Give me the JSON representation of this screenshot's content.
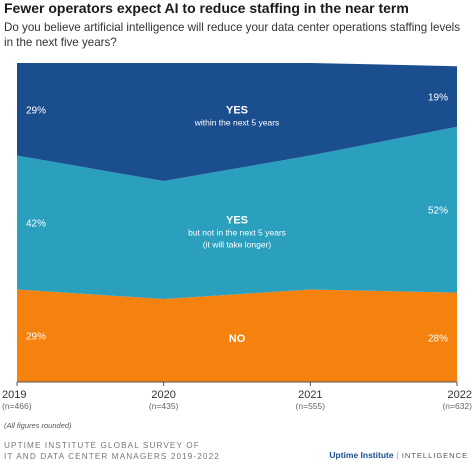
{
  "title": "Fewer operators expect AI to reduce staffing in the near term",
  "subtitle": "Do you believe artificial intelligence will reduce your data center operations staffing levels in the next five years?",
  "note": "(All figures rounded)",
  "source_line1": "UPTIME INSTITUTE GLOBAL SURVEY OF",
  "source_line2": "IT AND DATA CENTER MANAGERS 2019-2022",
  "brand": {
    "name": "Uptime Institute",
    "separator": "|",
    "division": "INTELLIGENCE"
  },
  "colors": {
    "yes_within": "#1b4e8f",
    "yes_later": "#2a9fbe",
    "no": "#f5820e"
  },
  "chart_data": {
    "type": "area",
    "stacked": true,
    "normalized": true,
    "x": [
      "2019",
      "2020",
      "2021",
      "2022"
    ],
    "x_sublabels": [
      "(n=466)",
      "(n=435)",
      "(n=555)",
      "(n=632)"
    ],
    "series": [
      {
        "name": "NO",
        "label": "NO",
        "color": "#f5820e",
        "values": [
          29,
          26,
          29,
          28
        ]
      },
      {
        "name": "YES but not in the next 5 years",
        "label_main": "YES",
        "label_sub": [
          "but not in the next 5 years",
          "(it will take longer)"
        ],
        "color": "#2a9fbe",
        "values": [
          42,
          37,
          42,
          52
        ]
      },
      {
        "name": "YES within the next 5 years",
        "label_main": "YES",
        "label_sub": [
          "within the next 5 years"
        ],
        "color": "#1b4e8f",
        "values": [
          29,
          37,
          29,
          19
        ]
      }
    ],
    "edge_labels": {
      "left": [
        "29%",
        "42%",
        "29%"
      ],
      "right": [
        "19%",
        "52%",
        "28%"
      ]
    },
    "ylim": [
      0,
      100
    ]
  }
}
